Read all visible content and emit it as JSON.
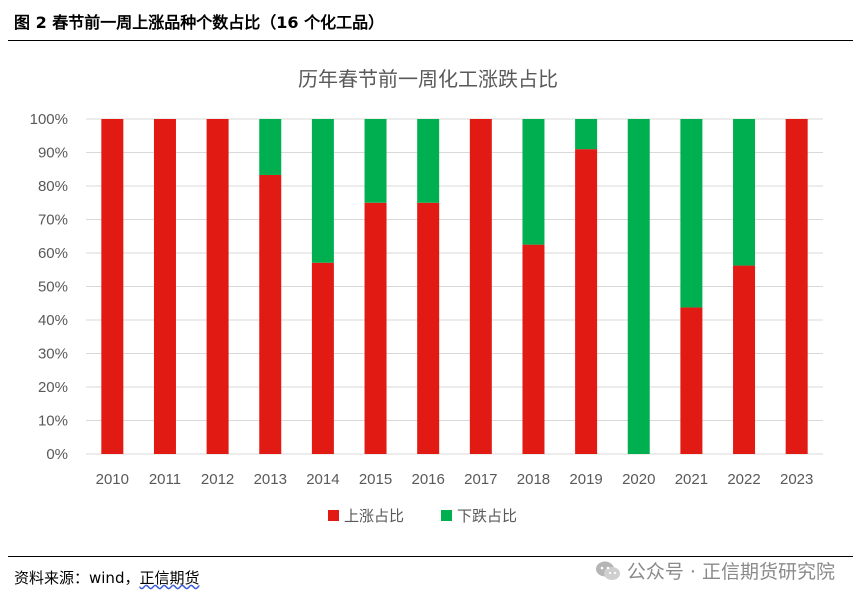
{
  "figure": {
    "title": "图 2  春节前一周上涨品种个数占比（16 个化工品）",
    "source_prefix": "资料来源：wind，",
    "source_org": "正信期货",
    "watermark": "公众号 · 正信期货研究院"
  },
  "chart_data": {
    "type": "bar",
    "stacked": true,
    "title": "历年春节前一周化工涨跌占比",
    "categories": [
      "2010",
      "2011",
      "2012",
      "2013",
      "2014",
      "2015",
      "2016",
      "2017",
      "2018",
      "2019",
      "2020",
      "2021",
      "2022",
      "2023"
    ],
    "series": [
      {
        "name": "上涨占比",
        "color": "#e11a14",
        "values": [
          100,
          100,
          100,
          83.3,
          57.1,
          75,
          75,
          100,
          62.5,
          91,
          0,
          43.75,
          56.25,
          100
        ]
      },
      {
        "name": "下跌占比",
        "color": "#00b050",
        "values": [
          0,
          0,
          0,
          16.7,
          42.9,
          25,
          25,
          0,
          37.5,
          9,
          100,
          56.25,
          43.75,
          0
        ]
      }
    ],
    "ylim": [
      0,
      100
    ],
    "yticks": [
      "0%",
      "10%",
      "20%",
      "30%",
      "40%",
      "50%",
      "60%",
      "70%",
      "80%",
      "90%",
      "100%"
    ],
    "grid": true,
    "legend_position": "bottom"
  }
}
